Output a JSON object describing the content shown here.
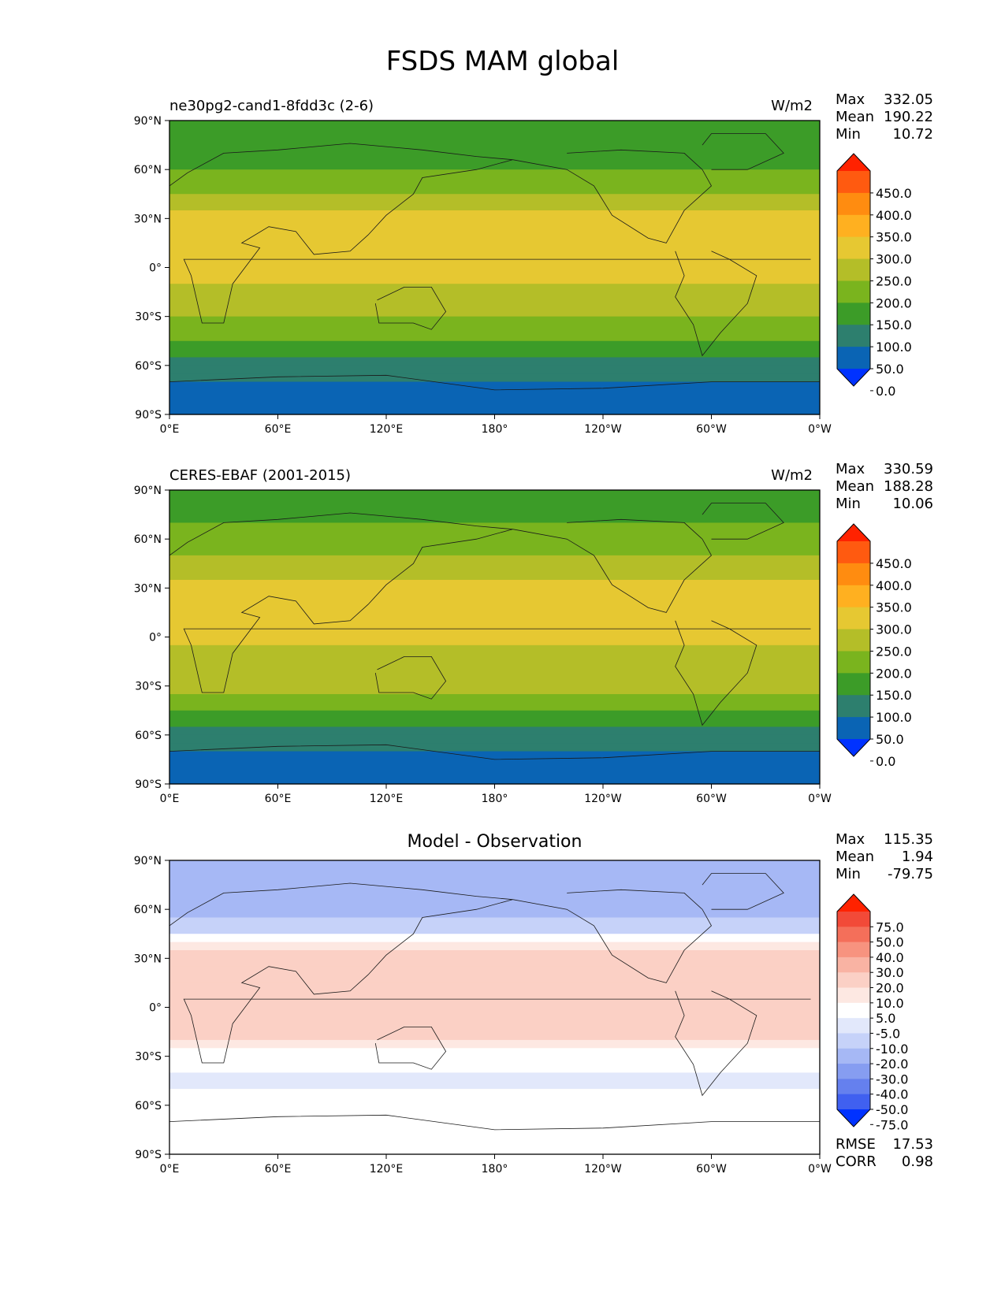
{
  "figure_title": "FSDS MAM global",
  "axes": {
    "lat_ticks": [
      "90°N",
      "60°N",
      "30°N",
      "0°",
      "30°S",
      "60°S",
      "90°S"
    ],
    "lon_ticks": [
      "0°E",
      "60°E",
      "120°E",
      "180°",
      "120°W",
      "60°W",
      "0°W"
    ]
  },
  "panels": [
    {
      "name": "ne30pg2-cand1-8fdd3c (2-6)",
      "units": "W/m2",
      "stats": [
        {
          "label": "Max",
          "value": "332.05"
        },
        {
          "label": "Mean",
          "value": "190.22"
        },
        {
          "label": "Min",
          "value": "10.72"
        }
      ]
    },
    {
      "name": "CERES-EBAF (2001-2015)",
      "units": "W/m2",
      "stats": [
        {
          "label": "Max",
          "value": "330.59"
        },
        {
          "label": "Mean",
          "value": "188.28"
        },
        {
          "label": "Min",
          "value": "10.06"
        }
      ]
    },
    {
      "title": "Model - Observation",
      "stats": [
        {
          "label": "Max",
          "value": "115.35"
        },
        {
          "label": "Mean",
          "value": "1.94"
        },
        {
          "label": "Min",
          "value": "-79.75"
        }
      ],
      "footer": [
        {
          "label": "RMSE",
          "value": "17.53"
        },
        {
          "label": "CORR",
          "value": "0.98"
        }
      ]
    }
  ],
  "chart_data": [
    {
      "type": "heatmap",
      "variable": "FSDS",
      "title": "ne30pg2-cand1-8fdd3c (2-6)",
      "units": "W/m2",
      "xlim": [
        0,
        360
      ],
      "ylim": [
        -90,
        90
      ],
      "colorbar": {
        "ticks": [
          "450.0",
          "400.0",
          "350.0",
          "300.0",
          "250.0",
          "200.0",
          "150.0",
          "100.0",
          "50.0",
          "0.0"
        ],
        "colors": [
          "#ff2200",
          "#ff5a10",
          "#ff8c10",
          "#ffb020",
          "#e6c832",
          "#b4be28",
          "#7ab41e",
          "#3c9c28",
          "#2d7f6e",
          "#0a64b4",
          "#0032ff"
        ],
        "extend": "both"
      },
      "zonal_profile": [
        {
          "lat": 90,
          "value": 150
        },
        {
          "lat": 75,
          "value": 120
        },
        {
          "lat": 60,
          "value": 150
        },
        {
          "lat": 45,
          "value": 200
        },
        {
          "lat": 30,
          "value": 280
        },
        {
          "lat": 15,
          "value": 290
        },
        {
          "lat": 0,
          "value": 260
        },
        {
          "lat": -15,
          "value": 240
        },
        {
          "lat": -30,
          "value": 210
        },
        {
          "lat": -45,
          "value": 140
        },
        {
          "lat": -60,
          "value": 70
        },
        {
          "lat": -75,
          "value": 30
        },
        {
          "lat": -90,
          "value": 10
        }
      ]
    },
    {
      "type": "heatmap",
      "variable": "FSDS",
      "title": "CERES-EBAF (2001-2015)",
      "units": "W/m2",
      "xlim": [
        0,
        360
      ],
      "ylim": [
        -90,
        90
      ],
      "colorbar": {
        "ticks": [
          "450.0",
          "400.0",
          "350.0",
          "300.0",
          "250.0",
          "200.0",
          "150.0",
          "100.0",
          "50.0",
          "0.0"
        ],
        "colors": [
          "#ff2200",
          "#ff5a10",
          "#ff8c10",
          "#ffb020",
          "#e6c832",
          "#b4be28",
          "#7ab41e",
          "#3c9c28",
          "#2d7f6e",
          "#0a64b4",
          "#0032ff"
        ],
        "extend": "both"
      },
      "zonal_profile": [
        {
          "lat": 90,
          "value": 150
        },
        {
          "lat": 75,
          "value": 140
        },
        {
          "lat": 60,
          "value": 160
        },
        {
          "lat": 45,
          "value": 210
        },
        {
          "lat": 30,
          "value": 270
        },
        {
          "lat": 15,
          "value": 280
        },
        {
          "lat": 0,
          "value": 255
        },
        {
          "lat": -15,
          "value": 240
        },
        {
          "lat": -30,
          "value": 215
        },
        {
          "lat": -45,
          "value": 145
        },
        {
          "lat": -60,
          "value": 75
        },
        {
          "lat": -75,
          "value": 30
        },
        {
          "lat": -90,
          "value": 10
        }
      ]
    },
    {
      "type": "heatmap",
      "variable": "FSDS difference",
      "title": "Model - Observation",
      "xlim": [
        0,
        360
      ],
      "ylim": [
        -90,
        90
      ],
      "colorbar": {
        "ticks": [
          "75.0",
          "50.0",
          "40.0",
          "30.0",
          "20.0",
          "10.0",
          "5.0",
          "-5.0",
          "-10.0",
          "-20.0",
          "-30.0",
          "-40.0",
          "-50.0",
          "-75.0"
        ],
        "colors": [
          "#ff2200",
          "#f24a38",
          "#f46f5a",
          "#f7937f",
          "#f9b3a3",
          "#fbd0c5",
          "#fde8e2",
          "#ffffff",
          "#e2e8fb",
          "#c6d2f9",
          "#a6b8f5",
          "#869df1",
          "#6580ee",
          "#4060f0",
          "#0032ff"
        ],
        "extend": "both"
      },
      "zonal_profile": [
        {
          "lat": 90,
          "value": -30
        },
        {
          "lat": 75,
          "value": -20
        },
        {
          "lat": 60,
          "value": -30
        },
        {
          "lat": 45,
          "value": -10
        },
        {
          "lat": 30,
          "value": 20
        },
        {
          "lat": 15,
          "value": 10
        },
        {
          "lat": 0,
          "value": 15
        },
        {
          "lat": -15,
          "value": 15
        },
        {
          "lat": -30,
          "value": 0
        },
        {
          "lat": -45,
          "value": -10
        },
        {
          "lat": -60,
          "value": 0
        },
        {
          "lat": -75,
          "value": 0
        },
        {
          "lat": -90,
          "value": 0
        }
      ]
    }
  ]
}
